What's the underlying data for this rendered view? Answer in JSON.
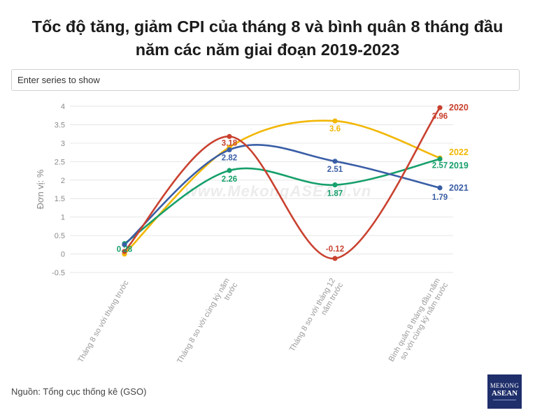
{
  "title_line1": "Tốc độ tăng, giảm CPI của tháng 8 và bình quân 8 tháng đầu",
  "title_line2": "năm các năm giai đoạn 2019-2023",
  "search": {
    "placeholder": "Enter series to show"
  },
  "source": "Nguồn: Tổng cục thống kê (GSO)",
  "watermark": "www.MekongASEAN.vn",
  "logo": {
    "line1": "MEKONG",
    "line2": "ASEAN"
  },
  "chart_data": {
    "type": "line",
    "ylabel": "Đơn vị: %",
    "xlabel": "",
    "ylim": [
      -0.5,
      4
    ],
    "yticks": [
      "4",
      "3.5",
      "3",
      "2.5",
      "2",
      "1.5",
      "1",
      "0.5",
      "0",
      "-0.5"
    ],
    "grid": true,
    "legend": "end-of-line labels",
    "categories": [
      [
        "Tháng 8 so với tháng trước"
      ],
      [
        "Tháng 8 so với cùng kỳ năm",
        "trước"
      ],
      [
        "Tháng 8 so với tháng 12",
        "năm trước"
      ],
      [
        "Bình quân 8 tháng đầu năm",
        "so với cùng kỳ năm trước"
      ]
    ],
    "series": [
      {
        "name": "2022",
        "color": "#f2b705",
        "values": [
          0.0,
          2.89,
          3.6,
          2.6
        ],
        "labels": [
          "",
          "",
          "3.6",
          ""
        ]
      },
      {
        "name": "2019",
        "color": "#16a06b",
        "values": [
          0.28,
          2.26,
          1.87,
          2.57
        ],
        "labels": [
          "0.28",
          "2.26",
          "1.87",
          "2.57"
        ]
      },
      {
        "name": "2021",
        "color": "#3a5ea6",
        "values": [
          0.25,
          2.82,
          2.51,
          1.79
        ],
        "labels": [
          "",
          "2.82",
          "2.51",
          "1.79"
        ]
      },
      {
        "name": "2020",
        "color": "#c9412f",
        "values": [
          0.07,
          3.18,
          -0.12,
          3.96
        ],
        "labels": [
          "",
          "3.18",
          "-0.12",
          "3.96"
        ]
      }
    ]
  }
}
